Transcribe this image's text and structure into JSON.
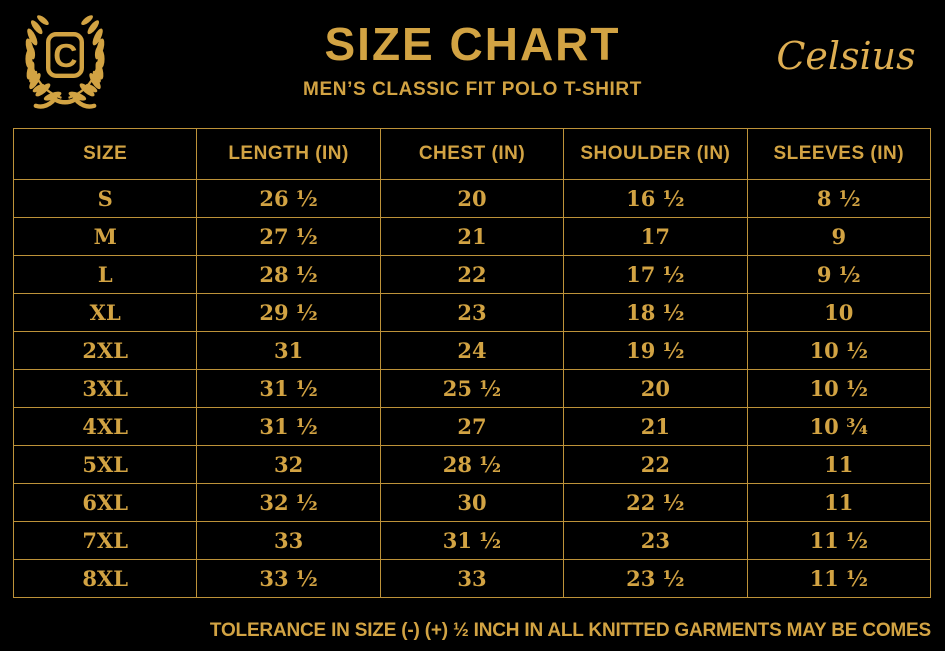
{
  "colors": {
    "background": "#000000",
    "gold": "#d2a343",
    "gold_bright": "#deae52",
    "border": "#bd9239"
  },
  "brand": {
    "logo_letter": "C",
    "wordmark": "Celsius"
  },
  "chart_data": {
    "type": "table",
    "title": "SIZE CHART",
    "subtitle": "MEN’S CLASSIC FIT POLO T-SHIRT",
    "columns": [
      "SIZE",
      "LENGTH (IN)",
      "CHEST (IN)",
      "SHOULDER (IN)",
      "SLEEVES (IN)"
    ],
    "rows": [
      [
        "S",
        "26 ½",
        "20",
        "16 ½",
        "8 ½"
      ],
      [
        "M",
        "27 ½",
        "21",
        "17",
        "9"
      ],
      [
        "L",
        "28 ½",
        "22",
        "17 ½",
        "9 ½"
      ],
      [
        "XL",
        "29 ½",
        "23",
        "18 ½",
        "10"
      ],
      [
        "2XL",
        "31",
        "24",
        "19 ½",
        "10 ½"
      ],
      [
        "3XL",
        "31 ½",
        "25 ½",
        "20",
        "10 ½"
      ],
      [
        "4XL",
        "31 ½",
        "27",
        "21",
        "10 ¾"
      ],
      [
        "5XL",
        "32",
        "28 ½",
        "22",
        "11"
      ],
      [
        "6XL",
        "32 ½",
        "30",
        "22 ½",
        "11"
      ],
      [
        "7XL",
        "33",
        "31 ½",
        "23",
        "11 ½"
      ],
      [
        "8XL",
        "33 ½",
        "33",
        "23 ½",
        "11 ½"
      ]
    ],
    "footnote": "TOLERANCE IN SIZE (-) (+) ½ INCH IN ALL KNITTED GARMENTS MAY BE COMES"
  }
}
